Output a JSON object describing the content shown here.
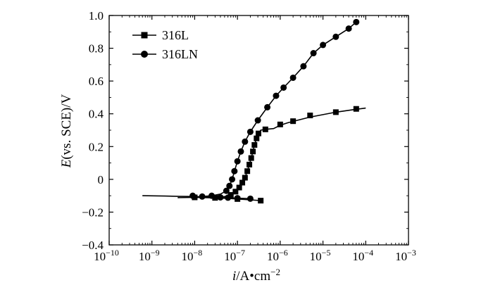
{
  "chart_data": {
    "type": "line",
    "title": "",
    "xlabel": {
      "italic": "i",
      "rest": "/A•cm",
      "sup": "−2"
    },
    "ylabel": {
      "italic": "E",
      "rest": "(vs. SCE)/V"
    },
    "x_scale": "log",
    "xlim": [
      1e-10,
      0.001
    ],
    "ylim": [
      -0.4,
      1.0
    ],
    "grid": false,
    "legend_position": "top-left",
    "x_ticks": [
      {
        "value": 1e-10,
        "base": "10",
        "exp": "−10"
      },
      {
        "value": 1e-09,
        "base": "10",
        "exp": "−9"
      },
      {
        "value": 1e-08,
        "base": "10",
        "exp": "−8"
      },
      {
        "value": 1e-07,
        "base": "10",
        "exp": "−7"
      },
      {
        "value": 1e-06,
        "base": "10",
        "exp": "−6"
      },
      {
        "value": 1e-05,
        "base": "10",
        "exp": "−5"
      },
      {
        "value": 0.0001,
        "base": "10",
        "exp": "−4"
      },
      {
        "value": 0.001,
        "base": "10",
        "exp": "−3"
      }
    ],
    "y_ticks": [
      {
        "value": -0.4,
        "label": "−0.4"
      },
      {
        "value": -0.2,
        "label": "−0.2"
      },
      {
        "value": 0.0,
        "label": "0"
      },
      {
        "value": 0.2,
        "label": "0.2"
      },
      {
        "value": 0.4,
        "label": "0.4"
      },
      {
        "value": 0.6,
        "label": "0.6"
      },
      {
        "value": 0.8,
        "label": "0.8"
      },
      {
        "value": 1.0,
        "label": "1.0"
      }
    ],
    "series": [
      {
        "name": "316L",
        "marker": "square",
        "color": "#000000",
        "points": [
          [
            4e-09,
            -0.112
          ],
          [
            1e-08,
            -0.11
          ],
          [
            2e-08,
            -0.112
          ],
          [
            3e-08,
            -0.113
          ],
          [
            6e-08,
            -0.116
          ],
          [
            1e-07,
            -0.12
          ],
          [
            2e-07,
            -0.125
          ],
          [
            3.5e-07,
            -0.13
          ]
        ],
        "anodic": [
          [
            3.5e-08,
            -0.11
          ],
          [
            5e-08,
            -0.105
          ],
          [
            7e-08,
            -0.095
          ],
          [
            9e-08,
            -0.075
          ],
          [
            1.1e-07,
            -0.05
          ],
          [
            1.3e-07,
            -0.02
          ],
          [
            1.5e-07,
            0.01
          ],
          [
            1.7e-07,
            0.05
          ],
          [
            1.9e-07,
            0.09
          ],
          [
            2.1e-07,
            0.13
          ],
          [
            2.3e-07,
            0.17
          ],
          [
            2.5e-07,
            0.21
          ],
          [
            2.8e-07,
            0.25
          ],
          [
            3.1e-07,
            0.28
          ],
          [
            3.5e-07,
            0.3
          ],
          [
            4.5e-07,
            0.305
          ],
          [
            7e-07,
            0.31
          ],
          [
            1e-06,
            0.33
          ],
          [
            1.5e-06,
            0.345
          ],
          [
            2.5e-06,
            0.36
          ],
          [
            5e-06,
            0.38
          ],
          [
            1e-05,
            0.395
          ],
          [
            2e-05,
            0.41
          ],
          [
            5e-05,
            0.425
          ],
          [
            0.0001,
            0.435
          ]
        ],
        "marker_points": [
          [
            1e-08,
            -0.11
          ],
          [
            3e-08,
            -0.113
          ],
          [
            1e-07,
            -0.12
          ],
          [
            3.5e-07,
            -0.13
          ],
          [
            7e-08,
            -0.095
          ],
          [
            9e-08,
            -0.075
          ],
          [
            1.1e-07,
            -0.05
          ],
          [
            1.3e-07,
            -0.02
          ],
          [
            1.5e-07,
            0.01
          ],
          [
            1.7e-07,
            0.05
          ],
          [
            1.9e-07,
            0.09
          ],
          [
            2.1e-07,
            0.13
          ],
          [
            2.3e-07,
            0.17
          ],
          [
            2.5e-07,
            0.21
          ],
          [
            2.8e-07,
            0.25
          ],
          [
            3.1e-07,
            0.28
          ],
          [
            4.5e-07,
            0.305
          ],
          [
            1e-06,
            0.335
          ],
          [
            2e-06,
            0.355
          ],
          [
            5e-06,
            0.39
          ],
          [
            2e-05,
            0.41
          ],
          [
            6e-05,
            0.43
          ]
        ]
      },
      {
        "name": "316LN",
        "marker": "circle",
        "color": "#000000",
        "points": [
          [
            6e-10,
            -0.1
          ],
          [
            2e-09,
            -0.102
          ],
          [
            5e-09,
            -0.104
          ],
          [
            1e-08,
            -0.105
          ],
          [
            3e-08,
            -0.108
          ],
          [
            6e-08,
            -0.112
          ],
          [
            1e-07,
            -0.115
          ],
          [
            2e-07,
            -0.118
          ]
        ],
        "anodic": [
          [
            1.5e-08,
            -0.105
          ],
          [
            2.5e-08,
            -0.1
          ],
          [
            4e-08,
            -0.09
          ],
          [
            5.5e-08,
            -0.07
          ],
          [
            6.5e-08,
            -0.04
          ],
          [
            7.5e-08,
            0.0
          ],
          [
            8.5e-08,
            0.05
          ],
          [
            1e-07,
            0.11
          ],
          [
            1.2e-07,
            0.17
          ],
          [
            1.5e-07,
            0.23
          ],
          [
            2e-07,
            0.29
          ],
          [
            3e-07,
            0.36
          ],
          [
            5e-07,
            0.44
          ],
          [
            8e-07,
            0.51
          ],
          [
            1.2e-06,
            0.56
          ],
          [
            2e-06,
            0.62
          ],
          [
            3.5e-06,
            0.69
          ],
          [
            6e-06,
            0.77
          ],
          [
            1e-05,
            0.82
          ],
          [
            2e-05,
            0.87
          ],
          [
            4e-05,
            0.92
          ],
          [
            6e-05,
            0.96
          ]
        ],
        "marker_points": [
          [
            9e-09,
            -0.1
          ],
          [
            1.5e-08,
            -0.105
          ],
          [
            2.5e-08,
            -0.1
          ],
          [
            4e-08,
            -0.11
          ],
          [
            6e-08,
            -0.112
          ],
          [
            1e-07,
            -0.115
          ],
          [
            2e-07,
            -0.118
          ],
          [
            5.5e-08,
            -0.07
          ],
          [
            6.5e-08,
            -0.04
          ],
          [
            7.5e-08,
            0.0
          ],
          [
            8.5e-08,
            0.05
          ],
          [
            1e-07,
            0.11
          ],
          [
            1.2e-07,
            0.17
          ],
          [
            1.5e-07,
            0.23
          ],
          [
            2e-07,
            0.29
          ],
          [
            3e-07,
            0.36
          ],
          [
            5e-07,
            0.44
          ],
          [
            8e-07,
            0.51
          ],
          [
            1.2e-06,
            0.56
          ],
          [
            2e-06,
            0.62
          ],
          [
            3.5e-06,
            0.69
          ],
          [
            6e-06,
            0.77
          ],
          [
            1e-05,
            0.82
          ],
          [
            2e-05,
            0.87
          ],
          [
            4e-05,
            0.92
          ],
          [
            6e-05,
            0.96
          ]
        ]
      }
    ]
  }
}
